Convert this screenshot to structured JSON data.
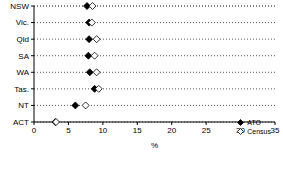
{
  "chart_data": {
    "type": "dot",
    "orientation": "horizontal",
    "xlabel": "%",
    "categories": [
      "NSW",
      "Vic.",
      "Qld",
      "SA",
      "WA",
      "Tas.",
      "NT",
      "ACT"
    ],
    "series": [
      {
        "name": "ATO",
        "color": "#000000",
        "marker": "diamond",
        "values": [
          7.7,
          8.0,
          8.0,
          7.9,
          8.1,
          8.8,
          6.0,
          3.1
        ]
      },
      {
        "name": "Census",
        "color": "#000000",
        "marker": "open_diamond",
        "values": [
          8.5,
          8.4,
          9.1,
          8.8,
          9.1,
          9.4,
          7.5,
          3.2
        ]
      }
    ],
    "xlim": [
      0,
      35
    ],
    "xticks": [
      0,
      5,
      10,
      15,
      20,
      25,
      30,
      35
    ],
    "grid": true,
    "legend": "lower right"
  }
}
